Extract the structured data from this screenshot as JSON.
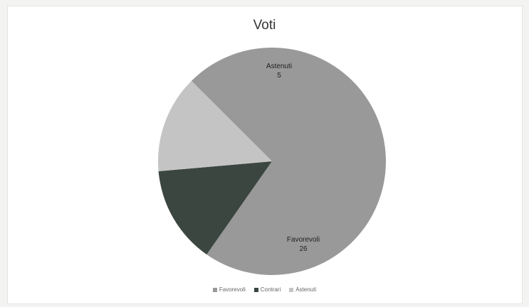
{
  "chart_data": {
    "type": "pie",
    "title": "Voti",
    "categories": [
      "Favorevoli",
      "Contrari",
      "Astenuti"
    ],
    "values": [
      26,
      5,
      5
    ],
    "data_labels": [
      {
        "category": "Favorevoli",
        "value": "26"
      },
      {
        "category": "Astenuti",
        "value": "5"
      }
    ],
    "colors": {
      "Favorevoli": "#999999",
      "Contrari": "#3c4641",
      "Astenuti": "#c4c4c4"
    },
    "start_angle_deg": -45,
    "direction": "clockwise",
    "legend_placement": "bottom"
  }
}
